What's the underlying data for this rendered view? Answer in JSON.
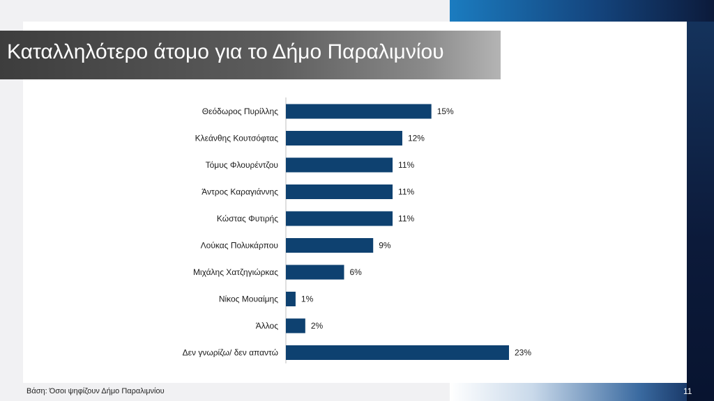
{
  "slide": {
    "title": "Καταλληλότερο άτομο για το Δήμο Παραλιμνίου",
    "footnote": "Βάση: Όσοι ψηφίζουν Δήμο Παραλιμνίου",
    "page_number": "11"
  },
  "colors": {
    "bar": "#0e4170",
    "title_bar": "#5a5a5a",
    "accent_band": "#14457e"
  },
  "chart_data": {
    "type": "bar",
    "orientation": "horizontal",
    "categories": [
      "Θεόδωρος Πυρίλλης",
      "Κλεάνθης Κουτσόφτας",
      "Τόμυς Φλουρέντζου",
      "Άντρος Καραγιάννης",
      "Κώστας Φυτιρής",
      "Λούκας Πολυκάρπου",
      "Μιχάλης Χατζηγιώρκας",
      "Νίκος Μουαίμης",
      "Άλλος",
      "Δεν γνωρίζω/ δεν απαντώ"
    ],
    "values": [
      15,
      12,
      11,
      11,
      11,
      9,
      6,
      1,
      2,
      23
    ],
    "value_labels": [
      "15%",
      "12%",
      "11%",
      "11%",
      "11%",
      "9%",
      "6%",
      "1%",
      "2%",
      "23%"
    ],
    "unit": "%",
    "xlim": [
      0,
      23
    ],
    "grid": false,
    "legend": "none"
  }
}
